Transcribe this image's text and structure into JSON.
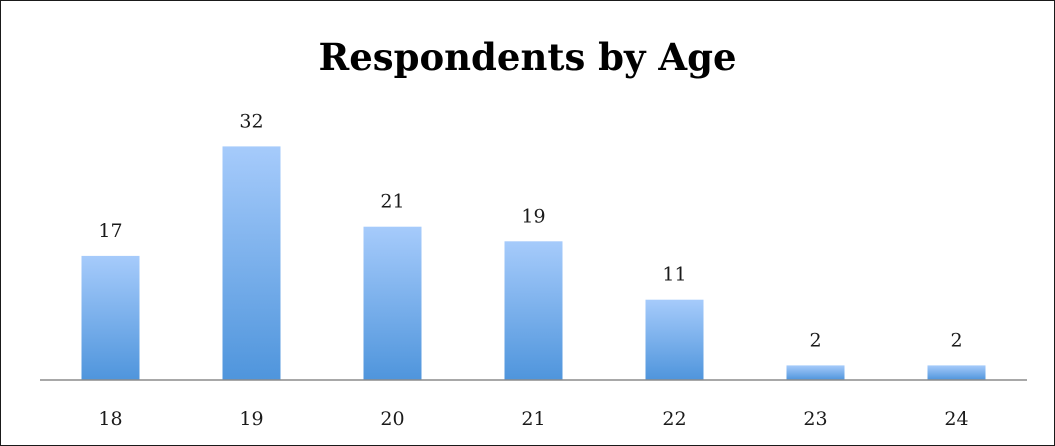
{
  "chart_data": {
    "type": "bar",
    "title": "Respondents by Age",
    "xlabel": "",
    "ylabel": "",
    "categories": [
      "18",
      "19",
      "20",
      "21",
      "22",
      "23",
      "24"
    ],
    "values": [
      17,
      32,
      21,
      19,
      11,
      2,
      2
    ],
    "ylim": [
      0,
      32
    ],
    "grid": false,
    "legend": "none",
    "colors": {
      "bar_top": "#a6cbfb",
      "bar_bottom": "#4f95dc",
      "axis": "#8c8c8c",
      "text": "#1a1a1a"
    }
  }
}
